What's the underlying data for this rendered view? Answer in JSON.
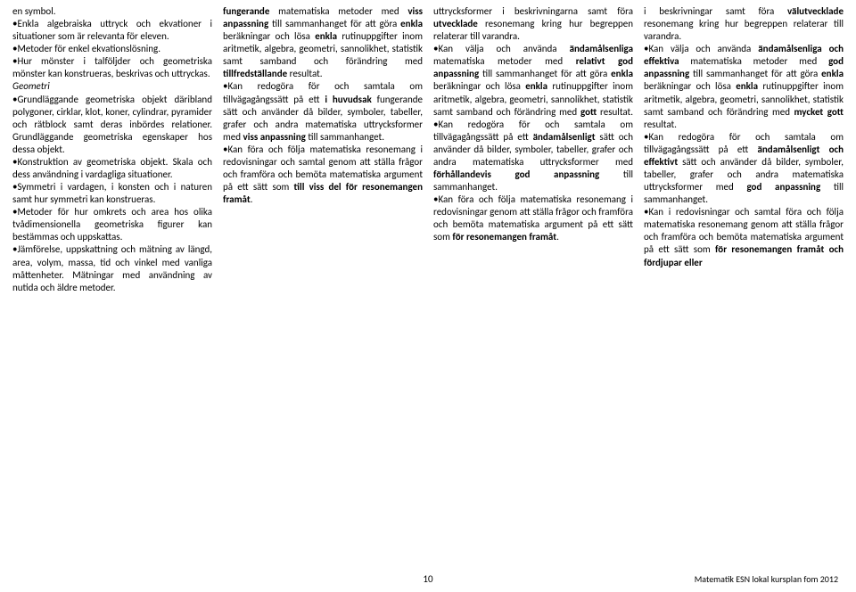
{
  "columns": [
    {
      "html": "en symbol.<br>•Enkla algebraiska uttryck och ekvationer i situationer som är relevanta för eleven.<br>•Metoder för enkel ekvationslösning.<br>•Hur mönster i talföljder och geometriska mönster kan konstrueras, beskrivas och uttryckas.<br><span class=\"i\">Geometri</span><br>•Grundläggande geometriska objekt däribland polygoner, cirklar, klot, koner, cylindrar, pyramider och rätblock samt deras inbördes relationer. Grundläggande geometriska egenskaper hos dessa objekt.<br>•Konstruktion av geometriska objekt. Skala och dess användning i vardagliga situationer.<br>•Symmetri i vardagen, i konsten och i naturen samt hur symmetri kan konstrueras.<br>•Metoder för hur omkrets och area hos olika tvådimensionella geometriska figurer kan bestämmas och uppskattas.<br>•Jämförelse, uppskattning och mätning av längd, area, volym, massa, tid och vinkel med vanliga måttenheter. Mätningar med användning av nutida och äldre metoder."
    },
    {
      "html": "<span class=\"b\">fungerande</span> matematiska metoder med <span class=\"b\">viss anpassning</span> till sammanhanget för att göra <span class=\"b\">enkla</span> beräkningar och lösa <span class=\"b\">enkla</span> rutinuppgifter inom aritmetik, algebra, geometri, sannolikhet, statistik samt samband och förändring med <span class=\"b\">tillfredställande</span> resultat.<br>•Kan redogöra för och samtala om tillvägagångssätt på ett <span class=\"b\">i huvudsak</span> fungerande sätt och använder då bilder, symboler, tabeller, grafer och andra matematiska uttrycksformer med <span class=\"b\">viss anpassning</span> till sammanhanget.<br>•Kan föra och följa matematiska resonemang i redovisningar och samtal genom att ställa frågor och framföra och bemöta matematiska argument på ett sätt som <span class=\"b\">till viss del för resonemangen framåt</span>."
    },
    {
      "html": "uttrycksformer i beskrivningarna samt föra <span class=\"b\">utvecklade</span> resonemang kring hur begreppen relaterar till varandra.<br>•Kan välja och använda <span class=\"b\">ändamålsenliga</span> matematiska metoder med <span class=\"b\">relativt god anpassning</span> till sammanhanget för att göra <span class=\"b\">enkla</span> beräkningar och lösa <span class=\"b\">enkla</span> rutinuppgifter inom aritmetik, algebra, geometri, sannolikhet, statistik samt samband och förändring med <span class=\"b\">gott</span> resultat. •Kan redogöra för och samtala om tillvägagångssätt på ett <span class=\"b\">ändamålsenligt</span> sätt och använder då bilder, symboler, tabeller, grafer och andra matematiska uttrycksformer med <span class=\"b\">förhållandevis god anpassning</span> till sammanhanget.<br>•Kan föra och följa matematiska resonemang i redovisningar genom att ställa frågor och framföra och bemöta matematiska argument på ett sätt som <span class=\"b\">för resonemangen framåt</span>."
    },
    {
      "html": "i beskrivningar samt föra <span class=\"b\">välutvecklade</span> resonemang kring hur begreppen relaterar till varandra.<br>•Kan välja och använda <span class=\"b\">ändamålsenliga och effektiva</span> matematiska metoder med <span class=\"b\">god anpassning</span> till sammanhanget för att göra <span class=\"b\">enkla</span> beräkningar och lösa <span class=\"b\">enkla</span> rutinuppgifter inom aritmetik, algebra, geometri, sannolikhet, statistik samt samband och förändring med <span class=\"b\">mycket gott</span> resultat.<br>•Kan redogöra för och samtala om tillvägagångssätt på ett <span class=\"b\">ändamålsenligt och effektivt</span> sätt och använder då bilder, symboler, tabeller, grafer och andra matematiska uttrycksformer med <span class=\"b\">god anpassning</span> till sammanhanget.<br>•Kan i redovisningar och samtal föra och följa matematiska resonemang genom att ställa frågor och framföra och bemöta matematiska argument på ett sätt som <span class=\"b\">för resonemangen framåt och fördjupar eller</span>"
    }
  ],
  "footer": {
    "page": "10",
    "source": "Matematik ESN lokal kursplan fom 2012"
  }
}
